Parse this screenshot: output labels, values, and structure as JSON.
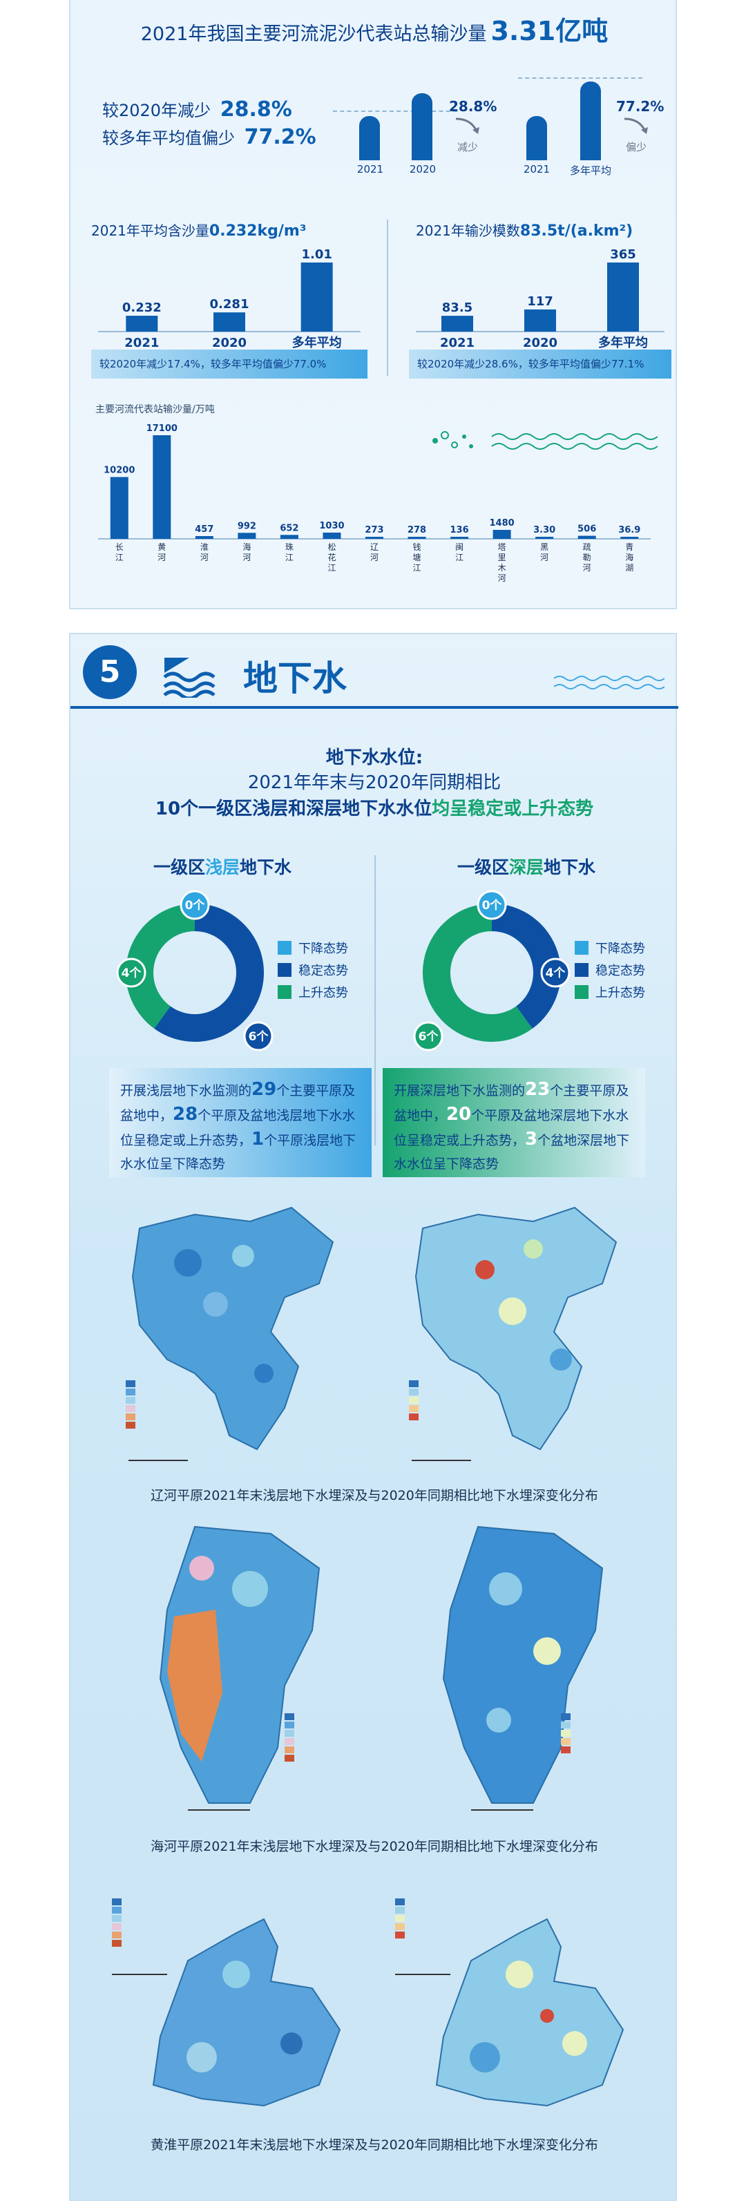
{
  "sediment": {
    "title_prefix": "2021年我国主要河流泥沙代表站总输沙量",
    "title_value": "3.31亿吨",
    "comp1_label": "较2020年减少",
    "comp1_value": "28.8%",
    "comp2_label": "较多年平均值偏少",
    "comp2_value": "77.2%",
    "mini1": {
      "bars": [
        "2021",
        "2020"
      ],
      "pct": "28.8%",
      "note": "减少"
    },
    "mini2": {
      "bars": [
        "2021",
        "多年平均"
      ],
      "pct": "77.2%",
      "note": "偏少"
    },
    "content_title_prefix": "2021年平均含沙量",
    "content_title_value": "0.232kg/m³",
    "modulus_title_prefix": "2021年输沙模数",
    "modulus_title_value": "83.5t/(a.km²)",
    "content_note": "较2020年减少17.4%，较多年平均值偏少77.0%",
    "modulus_note": "较2020年减少28.6%，较多年平均值偏少77.1%",
    "river_chart_title": "主要河流代表站输沙量/万吨"
  },
  "chart_data": [
    {
      "type": "bar",
      "title": "2021年平均含沙量0.232kg/m³",
      "categories": [
        "2021",
        "2020",
        "多年平均"
      ],
      "values": [
        0.232,
        0.281,
        1.01
      ],
      "value_labels": [
        "0.232",
        "0.281",
        "1.01"
      ]
    },
    {
      "type": "bar",
      "title": "2021年输沙模数83.5t/(a.km²)",
      "categories": [
        "2021",
        "2020",
        "多年平均"
      ],
      "values": [
        83.5,
        117,
        365
      ],
      "value_labels": [
        "83.5",
        "117",
        "365"
      ]
    },
    {
      "type": "bar",
      "title": "主要河流代表站输沙量/万吨",
      "categories": [
        "长江",
        "黄河",
        "淮河",
        "海河",
        "珠江",
        "松花江",
        "辽河",
        "钱塘江",
        "闽江",
        "塔里木河",
        "黑河",
        "疏勒河",
        "青海湖"
      ],
      "values": [
        10200,
        17100,
        457,
        992,
        652,
        1030,
        273,
        278,
        136,
        1480,
        3.3,
        506,
        36.9
      ],
      "value_labels": [
        "10200",
        "17100",
        "457",
        "992",
        "652",
        "1030",
        "273",
        "278",
        "136",
        "1480",
        "3.30",
        "506",
        "36.9"
      ]
    },
    {
      "type": "pie",
      "title": "一级区浅层地下水",
      "labels": [
        "下降态势",
        "稳定态势",
        "上升态势"
      ],
      "values": [
        0,
        6,
        4
      ],
      "value_labels": [
        "0个",
        "6个",
        "4个"
      ],
      "colors": [
        "#2fa6e0",
        "#0d4fa3",
        "#15a36f"
      ]
    },
    {
      "type": "pie",
      "title": "一级区深层地下水",
      "labels": [
        "下降态势",
        "稳定态势",
        "上升态势"
      ],
      "values": [
        0,
        4,
        6
      ],
      "value_labels": [
        "0个",
        "4个",
        "6个"
      ],
      "colors": [
        "#2fa6e0",
        "#0d4fa3",
        "#15a36f"
      ]
    }
  ],
  "groundwater": {
    "section_number": "5",
    "section_title": "地下水",
    "headline1": "地下水水位:",
    "headline2": "2021年年末与2020年同期相比",
    "headline3_a": "10个一级区浅层和深层地下水水位",
    "headline3_b": "均呈稳定或上升态势",
    "shallow_title_a": "一级区",
    "shallow_title_b": "浅层",
    "shallow_title_c": "地下水",
    "deep_title_a": "一级区",
    "deep_title_b": "深层",
    "deep_title_c": "地下水",
    "legend": [
      "下降态势",
      "稳定态势",
      "上升态势"
    ],
    "shallow_text": {
      "p1": "开展浅层地下水监测的",
      "n1": "29",
      "p2": "个主要平原及盆地中，",
      "n2": "28",
      "p3": "个平原及盆地浅层地下水水位呈稳定或上升态势，",
      "n3": "1",
      "p4": "个平原浅层地下水水位呈下降态势"
    },
    "deep_text": {
      "p1": "开展深层地下水监测的",
      "n1": "23",
      "p2": "个主要平原及盆地中，",
      "n2": "20",
      "p3": "个平原及盆地深层地下水水位呈稳定或上升态势，",
      "n3": "3",
      "p4": "个盆地深层地下水水位呈下降态势"
    },
    "captions": [
      "辽河平原2021年末浅层地下水埋深及与2020年同期相比地下水埋深变化分布",
      "海河平原2021年末浅层地下水埋深及与2020年同期相比地下水埋深变化分布",
      "黄淮平原2021年末浅层地下水埋深及与2020年同期相比地下水埋深变化分布"
    ]
  },
  "colors": {
    "primary": "#0d5fb0",
    "navy": "#0b3f8a",
    "light_blue": "#2fa6e0",
    "green": "#15a36f"
  }
}
